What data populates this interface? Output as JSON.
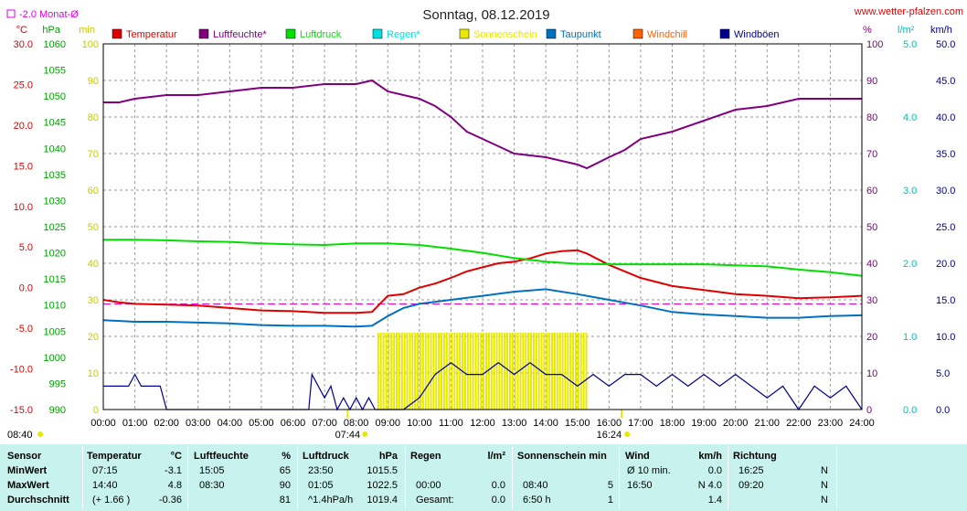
{
  "header": {
    "title": "Sonntag, 08.12.2019",
    "website": "www.wetter-pfalzen.com",
    "monat_note": "-2.0 Monat-Ø",
    "sunrise": "07:44",
    "sunset": "16:24",
    "corner_time": "08:40"
  },
  "legend": [
    {
      "name": "Temperatur",
      "color": "#e00000"
    },
    {
      "name": "Luftfeuchte*",
      "color": "#800080"
    },
    {
      "name": "Luftdruck",
      "color": "#00e000"
    },
    {
      "name": "Regen*",
      "color": "#00e0e0"
    },
    {
      "name": "Sonnenschein",
      "color": "#e8e800"
    },
    {
      "name": "Taupunkt",
      "color": "#0070c0"
    },
    {
      "name": "Windchill",
      "color": "#ff6000"
    },
    {
      "name": "Windböen",
      "color": "#000090"
    }
  ],
  "axes": {
    "temp_unit": "°C",
    "press_unit": "hPa",
    "sun_unit": "min",
    "hum_unit": "%",
    "rain_unit": "l/m²",
    "wind_unit": "km/h",
    "temp_ticks": [
      "30.0",
      "25.0",
      "20.0",
      "15.0",
      "10.0",
      "5.0",
      "0.0",
      "-5.0",
      "-10.0",
      "-15.0"
    ],
    "press_ticks": [
      "1060",
      "1055",
      "1050",
      "1045",
      "1040",
      "1035",
      "1030",
      "1025",
      "1020",
      "1015",
      "1010",
      "1005",
      "1000",
      "995",
      "990"
    ],
    "sun_ticks": [
      "100",
      "90",
      "80",
      "70",
      "60",
      "50",
      "40",
      "30",
      "20",
      "10",
      "0"
    ],
    "hum_ticks": [
      "100",
      "90",
      "80",
      "70",
      "60",
      "50",
      "40",
      "30",
      "20",
      "10",
      "0"
    ],
    "rain_ticks": [
      "5.0",
      "4.0",
      "3.0",
      "2.0",
      "1.0",
      "0.0"
    ],
    "wind_ticks": [
      "50.0",
      "45.0",
      "40.0",
      "35.0",
      "30.0",
      "25.0",
      "20.0",
      "15.0",
      "10.0",
      "5.0",
      "0.0"
    ],
    "time_ticks": [
      "00:00",
      "01:00",
      "02:00",
      "03:00",
      "04:00",
      "05:00",
      "06:00",
      "07:00",
      "08:00",
      "09:00",
      "10:00",
      "11:00",
      "12:00",
      "13:00",
      "14:00",
      "15:00",
      "16:00",
      "17:00",
      "18:00",
      "19:00",
      "20:00",
      "21:00",
      "22:00",
      "23:00",
      "24:00"
    ]
  },
  "chart_data": {
    "type": "line",
    "title": "Sonntag, 08.12.2019",
    "x_range_hours": [
      0,
      24
    ],
    "temp_range": [
      -15,
      30
    ],
    "press_range": [
      990,
      1060
    ],
    "hum_range": [
      0,
      100
    ],
    "rain_range": [
      0,
      5
    ],
    "wind_range": [
      0,
      50
    ],
    "monthly_avg_temp": -2.0,
    "series": [
      {
        "name": "Temperatur",
        "axis": "temp",
        "color": "#e00000",
        "x": [
          0,
          0.5,
          1,
          2,
          3,
          4,
          5,
          6,
          7,
          7.25,
          8,
          8.5,
          9,
          9.5,
          10,
          10.5,
          11,
          11.5,
          12,
          12.5,
          13,
          13.5,
          14,
          14.5,
          15,
          15.3,
          16,
          16.5,
          17,
          18,
          19,
          20,
          21,
          22,
          23,
          24
        ],
        "y": [
          -1.5,
          -1.8,
          -2,
          -2.1,
          -2.2,
          -2.5,
          -2.8,
          -2.9,
          -3.1,
          -3.1,
          -3.1,
          -3.0,
          -1.0,
          -0.8,
          0.0,
          0.5,
          1.2,
          2.0,
          2.5,
          3.0,
          3.2,
          3.6,
          4.2,
          4.5,
          4.6,
          4.2,
          2.8,
          2.0,
          1.2,
          0.2,
          -0.3,
          -0.8,
          -1.0,
          -1.3,
          -1.2,
          -1.0
        ]
      },
      {
        "name": "Luftfeuchte*",
        "axis": "hum",
        "color": "#800080",
        "x": [
          0,
          0.5,
          1,
          2,
          3,
          4,
          5,
          6,
          7,
          8,
          8.5,
          9,
          9.5,
          10,
          10.5,
          11,
          11.5,
          12,
          12.5,
          13,
          14,
          14.5,
          15,
          15.3,
          16,
          16.5,
          17,
          18,
          19,
          20,
          21,
          22,
          23,
          24
        ],
        "y": [
          84,
          84,
          85,
          86,
          86,
          87,
          88,
          88,
          89,
          89,
          90,
          87,
          86,
          85,
          83,
          80,
          76,
          74,
          72,
          70,
          69,
          68,
          67,
          66,
          69,
          71,
          74,
          76,
          79,
          82,
          83,
          85,
          85,
          85
        ]
      },
      {
        "name": "Luftdruck",
        "axis": "press",
        "color": "#00e000",
        "x": [
          0,
          1,
          2,
          3,
          4,
          5,
          6,
          7,
          8,
          9,
          10,
          11,
          12,
          13,
          14,
          15,
          16,
          17,
          18,
          19,
          20,
          21,
          22,
          23,
          24
        ],
        "y": [
          1022.5,
          1022.5,
          1022.4,
          1022.2,
          1022.1,
          1021.8,
          1021.6,
          1021.5,
          1021.8,
          1021.8,
          1021.5,
          1020.8,
          1020.0,
          1019.0,
          1018.3,
          1017.9,
          1017.8,
          1017.8,
          1017.8,
          1017.8,
          1017.6,
          1017.4,
          1016.8,
          1016.3,
          1015.6
        ]
      },
      {
        "name": "Taupunkt",
        "axis": "temp",
        "color": "#0070c0",
        "x": [
          0,
          1,
          2,
          3,
          4,
          5,
          6,
          7,
          8,
          8.5,
          9,
          9.5,
          10,
          11,
          12,
          13,
          14,
          15,
          16,
          17,
          18,
          19,
          20,
          21,
          22,
          23,
          24
        ],
        "y": [
          -4.0,
          -4.2,
          -4.2,
          -4.3,
          -4.4,
          -4.6,
          -4.7,
          -4.7,
          -4.8,
          -4.7,
          -3.5,
          -2.5,
          -2.0,
          -1.5,
          -1.0,
          -0.5,
          -0.2,
          -0.8,
          -1.5,
          -2.2,
          -3.0,
          -3.3,
          -3.5,
          -3.7,
          -3.7,
          -3.5,
          -3.4
        ]
      },
      {
        "name": "Windböen",
        "axis": "wind",
        "color": "#000090",
        "x": [
          0,
          0.4,
          0.8,
          1,
          1.2,
          1.6,
          1.8,
          2,
          6.5,
          6.6,
          7,
          7.2,
          7.4,
          7.6,
          7.8,
          8,
          8.2,
          8.4,
          8.6,
          9,
          9.5,
          10,
          10.5,
          11,
          11.5,
          12,
          12.5,
          13,
          13.5,
          14,
          14.5,
          15,
          15.5,
          16,
          16.5,
          17,
          17.5,
          18,
          18.5,
          19,
          19.5,
          20,
          20.5,
          21,
          21.5,
          22,
          22.5,
          23,
          23.5,
          24
        ],
        "y": [
          3.2,
          3.2,
          3.2,
          4.8,
          3.2,
          3.2,
          3.2,
          0,
          0,
          4.8,
          1.6,
          3.2,
          0,
          1.6,
          0,
          1.6,
          0,
          1.6,
          0,
          0,
          0,
          1.6,
          4.8,
          6.4,
          4.8,
          4.8,
          6.4,
          4.8,
          6.4,
          4.8,
          4.8,
          3.2,
          4.8,
          3.2,
          4.8,
          4.8,
          3.2,
          4.8,
          3.2,
          4.8,
          3.2,
          4.8,
          3.2,
          1.6,
          3.2,
          0,
          3.2,
          1.6,
          3.2,
          0
        ]
      }
    ],
    "sunshine": {
      "axis": "sun",
      "color": "#e8e800",
      "start": 8.67,
      "end": 15.33,
      "value": 5
    },
    "stats": {
      "headers": [
        "Sensor",
        "Temperatur",
        "°C",
        "Luftfeuchte",
        "%",
        "Luftdruck",
        "hPa",
        "Regen",
        "l/m²",
        "Sonnenschein min",
        "Wind",
        "km/h",
        "Richtung"
      ],
      "rows": [
        {
          "label": "MinWert",
          "cells": [
            "07:15",
            "-3.1",
            "15:05",
            "65",
            "23:50",
            "1015.5",
            "",
            "",
            "",
            "",
            "Ø 10 min.",
            "0.0",
            "16:25",
            "N"
          ]
        },
        {
          "label": "MaxWert",
          "cells": [
            "14:40",
            "4.8",
            "08:30",
            "90",
            "01:05",
            "1022.5",
            "00:00",
            "0.0",
            "08:40",
            "5",
            "16:50",
            "N 4.0",
            "09:20",
            "N"
          ]
        },
        {
          "label": "Durchschnitt",
          "cells": [
            "(+ 1.66 )",
            "-0.36",
            "",
            "81",
            "^1.4hPa/h",
            "1019.4",
            "Gesamt:",
            "0.0",
            "6:50 h",
            "1",
            "",
            "1.4",
            "",
            "N"
          ]
        }
      ]
    }
  }
}
